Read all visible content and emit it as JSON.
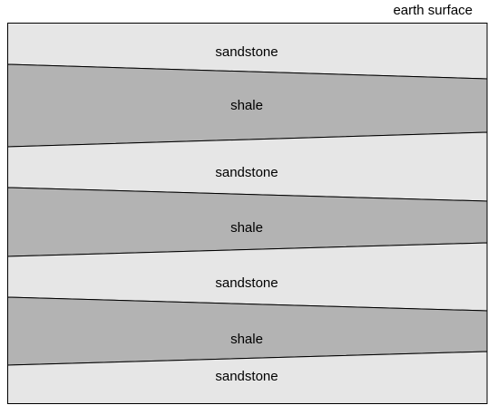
{
  "annotation": "earth surface",
  "layers": [
    "sandstone",
    "shale",
    "sandstone",
    "shale",
    "sandstone",
    "shale",
    "sandstone"
  ]
}
